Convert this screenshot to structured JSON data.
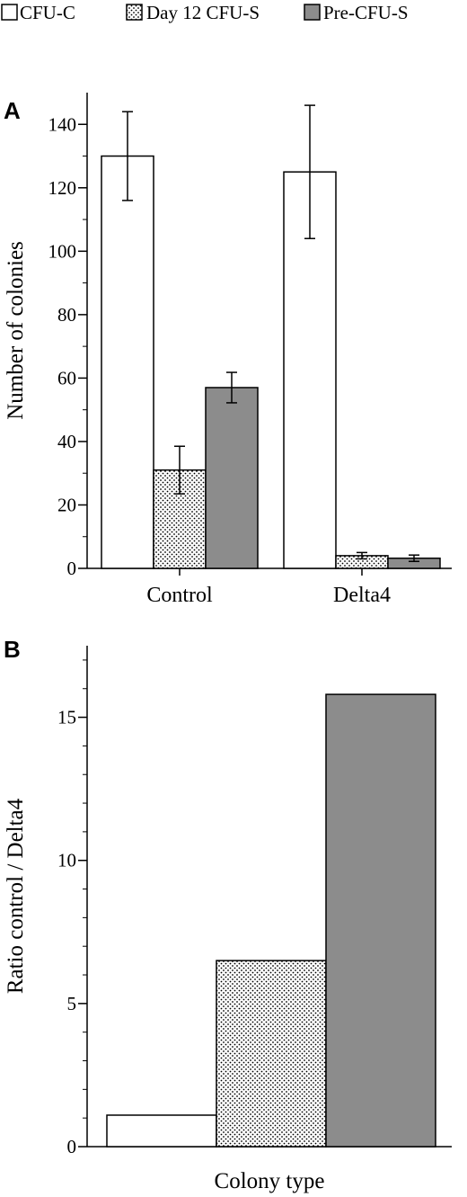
{
  "legend": {
    "items": [
      {
        "label": "CFU-C",
        "pattern": "white"
      },
      {
        "label": "Day 12 CFU-S",
        "pattern": "dots"
      },
      {
        "label": "Pre-CFU-S",
        "pattern": "gray"
      }
    ]
  },
  "colors": {
    "gray_fill": "#8c8c8c",
    "outline": "#000000",
    "white_fill": "#ffffff"
  },
  "chart_data": [
    {
      "panel": "A",
      "type": "bar",
      "categories": [
        "Control",
        "Delta4"
      ],
      "series": [
        {
          "name": "CFU-C",
          "values": [
            130,
            125
          ],
          "errors": [
            14,
            21
          ]
        },
        {
          "name": "Day 12 CFU-S",
          "values": [
            31,
            4
          ],
          "errors": [
            7.5,
            1
          ]
        },
        {
          "name": "Pre-CFU-S",
          "values": [
            57,
            3.2
          ],
          "errors": [
            4.8,
            1
          ]
        }
      ],
      "ylabel": "Number of colonies",
      "xlabel": "",
      "ylim": [
        0,
        150
      ],
      "yticks": [
        0,
        20,
        40,
        60,
        80,
        100,
        120,
        140
      ],
      "legend_position": "top"
    },
    {
      "panel": "B",
      "type": "bar",
      "categories": [
        "CFU-C",
        "Day 12 CFU-S",
        "Pre-CFU-S"
      ],
      "values": [
        1.1,
        6.5,
        15.8
      ],
      "ylabel": "Ratio control / Delta4",
      "xlabel": "Colony type",
      "ylim": [
        0,
        17.5
      ],
      "yticks": [
        0,
        5,
        10,
        15
      ]
    }
  ]
}
